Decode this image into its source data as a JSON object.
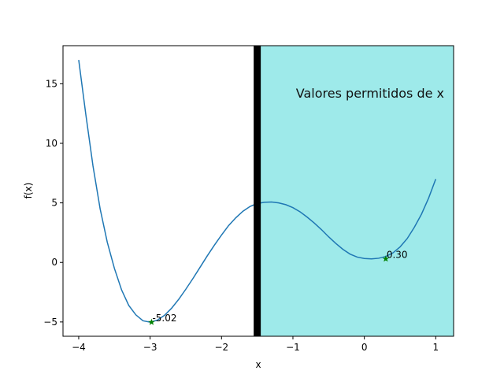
{
  "chart_data": {
    "type": "line",
    "title": "",
    "xlabel": "x",
    "ylabel": "f(x)",
    "xlim": [
      -4.22,
      1.25
    ],
    "ylim": [
      -6.2,
      18.2
    ],
    "x_ticks": [
      -4,
      -3,
      -2,
      -1,
      0,
      1
    ],
    "x_tick_labels": [
      "−4",
      "−3",
      "−2",
      "−1",
      "0",
      "1"
    ],
    "y_ticks": [
      -5,
      0,
      5,
      10,
      15
    ],
    "y_tick_labels": [
      "−5",
      "0",
      "5",
      "10",
      "15"
    ],
    "grid": false,
    "series": [
      {
        "color": "#1f77b4",
        "x": [
          -4.0,
          -3.9,
          -3.8,
          -3.7,
          -3.6,
          -3.5,
          -3.4,
          -3.3,
          -3.2,
          -3.1,
          -3.0,
          -2.9,
          -2.8,
          -2.7,
          -2.6,
          -2.5,
          -2.4,
          -2.3,
          -2.2,
          -2.1,
          -2.0,
          -1.9,
          -1.8,
          -1.7,
          -1.6,
          -1.5,
          -1.4,
          -1.3,
          -1.2,
          -1.1,
          -1.0,
          -0.9,
          -0.8,
          -0.7,
          -0.6,
          -0.5,
          -0.4,
          -0.3,
          -0.2,
          -0.1,
          0.0,
          0.1,
          0.2,
          0.3,
          0.4,
          0.5,
          0.6,
          0.7,
          0.8,
          0.9,
          1.0
        ],
        "y": [
          17.0,
          12.4,
          8.1,
          4.5,
          1.7,
          -0.5,
          -2.3,
          -3.6,
          -4.4,
          -4.9,
          -5.02,
          -4.85,
          -4.45,
          -3.85,
          -3.1,
          -2.25,
          -1.35,
          -0.4,
          0.55,
          1.45,
          2.3,
          3.1,
          3.75,
          4.3,
          4.7,
          4.95,
          5.05,
          5.07,
          5.0,
          4.85,
          4.6,
          4.25,
          3.8,
          3.3,
          2.75,
          2.15,
          1.6,
          1.1,
          0.7,
          0.45,
          0.33,
          0.3,
          0.35,
          0.5,
          0.8,
          1.3,
          2.0,
          2.95,
          4.05,
          5.4,
          7.0
        ]
      }
    ],
    "points": [
      {
        "x": -2.98,
        "y": -5.02,
        "label": "-5.02",
        "color": "#008000",
        "marker": "star"
      },
      {
        "x": 0.3,
        "y": 0.3,
        "label": "0.30",
        "color": "#008000",
        "marker": "star"
      }
    ],
    "shaded_region": {
      "x_from": -1.5,
      "x_to": 1.25,
      "color": "#9eeaea"
    },
    "vertical_line": {
      "x": -1.5,
      "color": "#000000"
    },
    "annotations": [
      {
        "text": "Valores permitidos de x"
      }
    ]
  }
}
